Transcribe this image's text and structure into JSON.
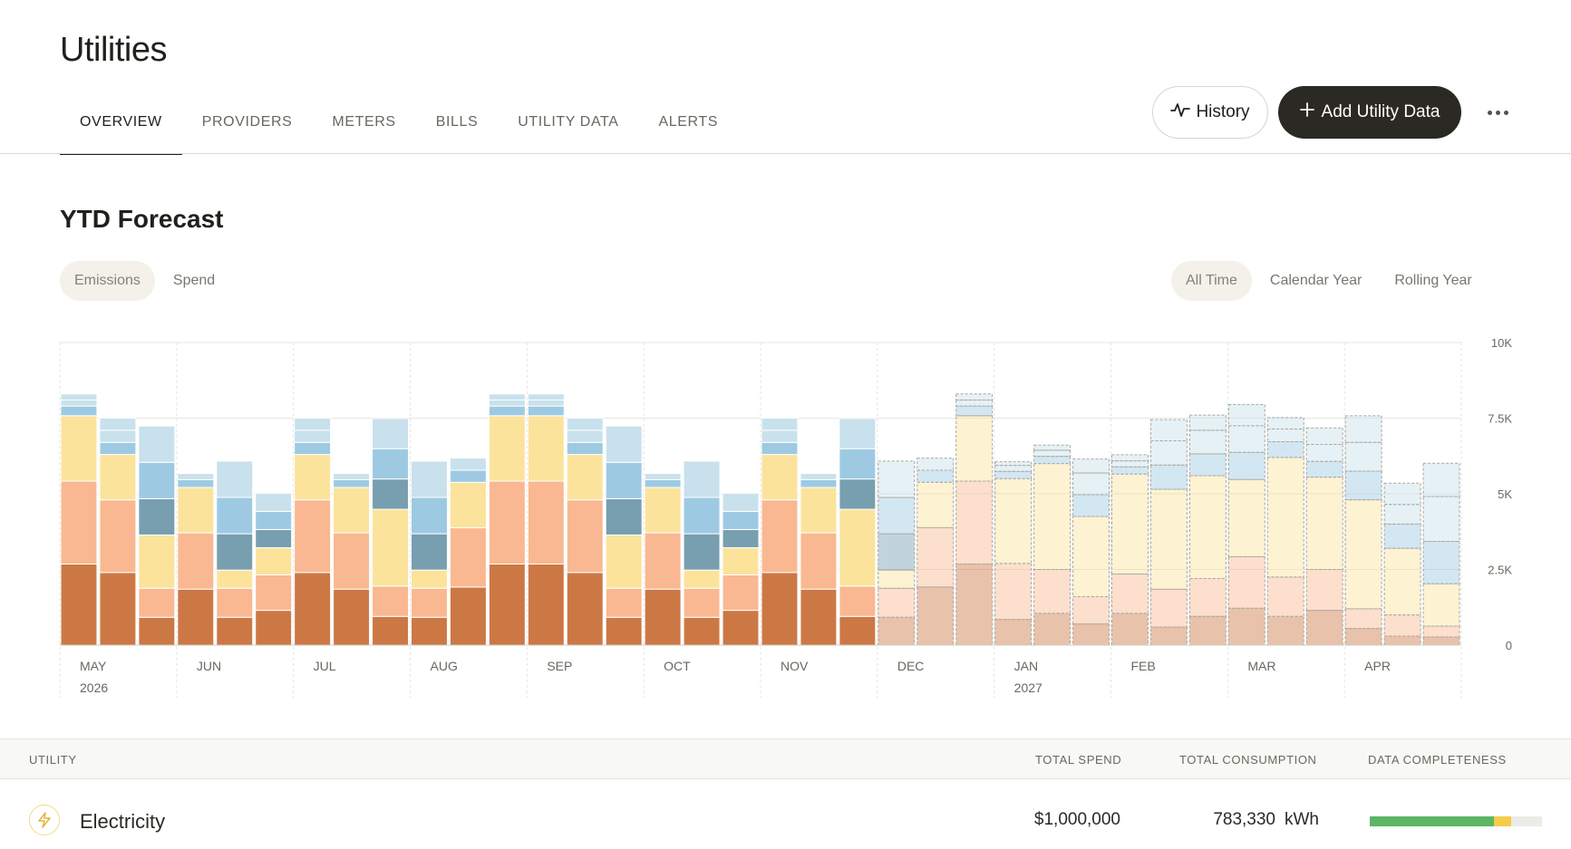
{
  "page": {
    "title": "Utilities"
  },
  "tabs": [
    {
      "label": "OVERVIEW",
      "active": true
    },
    {
      "label": "PROVIDERS",
      "active": false
    },
    {
      "label": "METERS",
      "active": false
    },
    {
      "label": "BILLS",
      "active": false
    },
    {
      "label": "UTILITY DATA",
      "active": false
    },
    {
      "label": "ALERTS",
      "active": false
    }
  ],
  "actions": {
    "history_label": "History",
    "history_icon": "activity-icon",
    "add_label": "Add Utility Data",
    "add_icon": "plus-icon",
    "more_icon": "ellipsis-icon"
  },
  "forecast": {
    "title": "YTD Forecast",
    "metric_toggle": [
      {
        "label": "Emissions",
        "selected": true
      },
      {
        "label": "Spend",
        "selected": false
      }
    ],
    "range_toggle": [
      {
        "label": "All Time",
        "selected": true
      },
      {
        "label": "Calendar Year",
        "selected": false
      },
      {
        "label": "Rolling Year",
        "selected": false
      }
    ]
  },
  "chart_data": {
    "type": "bar",
    "stacked": true,
    "ylim": [
      0,
      10000
    ],
    "y_ticks": [
      {
        "value": 0,
        "label": "0"
      },
      {
        "value": 2500,
        "label": "2.5K"
      },
      {
        "value": 5000,
        "label": "5K"
      },
      {
        "value": 7500,
        "label": "7.5K"
      },
      {
        "value": 10000,
        "label": "10K"
      }
    ],
    "y_axis_position": "right",
    "x_ticks": [
      {
        "label": "MAY",
        "sublabel": "2026"
      },
      {
        "label": "JUN",
        "sublabel": ""
      },
      {
        "label": "JUL",
        "sublabel": ""
      },
      {
        "label": "AUG",
        "sublabel": ""
      },
      {
        "label": "SEP",
        "sublabel": ""
      },
      {
        "label": "OCT",
        "sublabel": ""
      },
      {
        "label": "NOV",
        "sublabel": ""
      },
      {
        "label": "DEC",
        "sublabel": ""
      },
      {
        "label": "JAN",
        "sublabel": "2027"
      },
      {
        "label": "FEB",
        "sublabel": ""
      },
      {
        "label": "MAR",
        "sublabel": ""
      },
      {
        "label": "APR",
        "sublabel": ""
      }
    ],
    "segment_colors": [
      "#cc7845",
      "#f9b891",
      "#fbe39c",
      "#779fb0",
      "#9dcae2",
      "#c8e1ec"
    ],
    "actual_bars": 21,
    "bars": [
      [
        2680,
        2740,
        2160,
        0,
        320,
        200,
        200
      ],
      [
        2400,
        2400,
        1500,
        0,
        400,
        400,
        400
      ],
      [
        920,
        960,
        1760,
        1200,
        1200,
        1200,
        0
      ],
      [
        1850,
        1860,
        1500,
        0,
        260,
        200,
        0
      ],
      [
        920,
        960,
        600,
        1200,
        1200,
        1200,
        0
      ],
      [
        1150,
        1170,
        900,
        600,
        600,
        600,
        0
      ],
      [
        2400,
        2400,
        1500,
        0,
        400,
        400,
        400
      ],
      [
        1850,
        1860,
        1500,
        0,
        260,
        200,
        0
      ],
      [
        950,
        1000,
        2540,
        1000,
        1000,
        1000,
        0
      ],
      [
        920,
        960,
        600,
        1200,
        1200,
        1200,
        0
      ],
      [
        1920,
        1960,
        1500,
        0,
        400,
        400,
        0
      ],
      [
        2680,
        2740,
        2160,
        0,
        320,
        200,
        200
      ],
      [
        2680,
        2740,
        2160,
        0,
        320,
        200,
        200
      ],
      [
        2400,
        2400,
        1500,
        0,
        400,
        400,
        400
      ],
      [
        920,
        960,
        1760,
        1200,
        1200,
        1200,
        0
      ],
      [
        1850,
        1860,
        1500,
        0,
        260,
        200,
        0
      ],
      [
        920,
        960,
        600,
        1200,
        1200,
        1200,
        0
      ],
      [
        1150,
        1170,
        900,
        600,
        600,
        600,
        0
      ],
      [
        2400,
        2400,
        1500,
        0,
        400,
        400,
        400
      ],
      [
        1850,
        1860,
        1500,
        0,
        260,
        200,
        0
      ],
      [
        950,
        1000,
        2540,
        1000,
        1000,
        1000,
        0
      ],
      [
        920,
        960,
        600,
        1200,
        1200,
        1200,
        0
      ],
      [
        1920,
        1960,
        1500,
        0,
        400,
        400,
        0
      ],
      [
        2680,
        2740,
        2160,
        0,
        320,
        200,
        200
      ],
      [
        850,
        1850,
        2800,
        0,
        240,
        200,
        120
      ],
      [
        1050,
        1450,
        3500,
        0,
        240,
        200,
        170
      ],
      [
        700,
        900,
        2650,
        0,
        720,
        720,
        460
      ],
      [
        1050,
        1300,
        3300,
        0,
        240,
        200,
        200
      ],
      [
        600,
        1250,
        3300,
        0,
        800,
        800,
        700
      ],
      [
        950,
        1250,
        3400,
        0,
        720,
        780,
        500
      ],
      [
        1220,
        1700,
        2550,
        0,
        900,
        880,
        700
      ],
      [
        950,
        1300,
        3950,
        0,
        520,
        420,
        380
      ],
      [
        1150,
        1350,
        3050,
        0,
        520,
        560,
        550
      ],
      [
        550,
        650,
        3600,
        0,
        950,
        950,
        880
      ],
      [
        300,
        700,
        2200,
        0,
        800,
        650,
        700
      ],
      [
        270,
        360,
        1400,
        0,
        1400,
        1480,
        1100
      ]
    ]
  },
  "table": {
    "headers": {
      "utility": "UTILITY",
      "spend": "TOTAL SPEND",
      "consumption": "TOTAL CONSUMPTION",
      "completeness": "DATA COMPLETENESS"
    },
    "rows": [
      {
        "icon": "lightning-bolt-icon",
        "name": "Electricity",
        "spend": "$1,000,000",
        "consumption": "783,330",
        "unit": "kWh",
        "completeness_complete": 0.72,
        "completeness_partial": 0.1
      }
    ]
  }
}
